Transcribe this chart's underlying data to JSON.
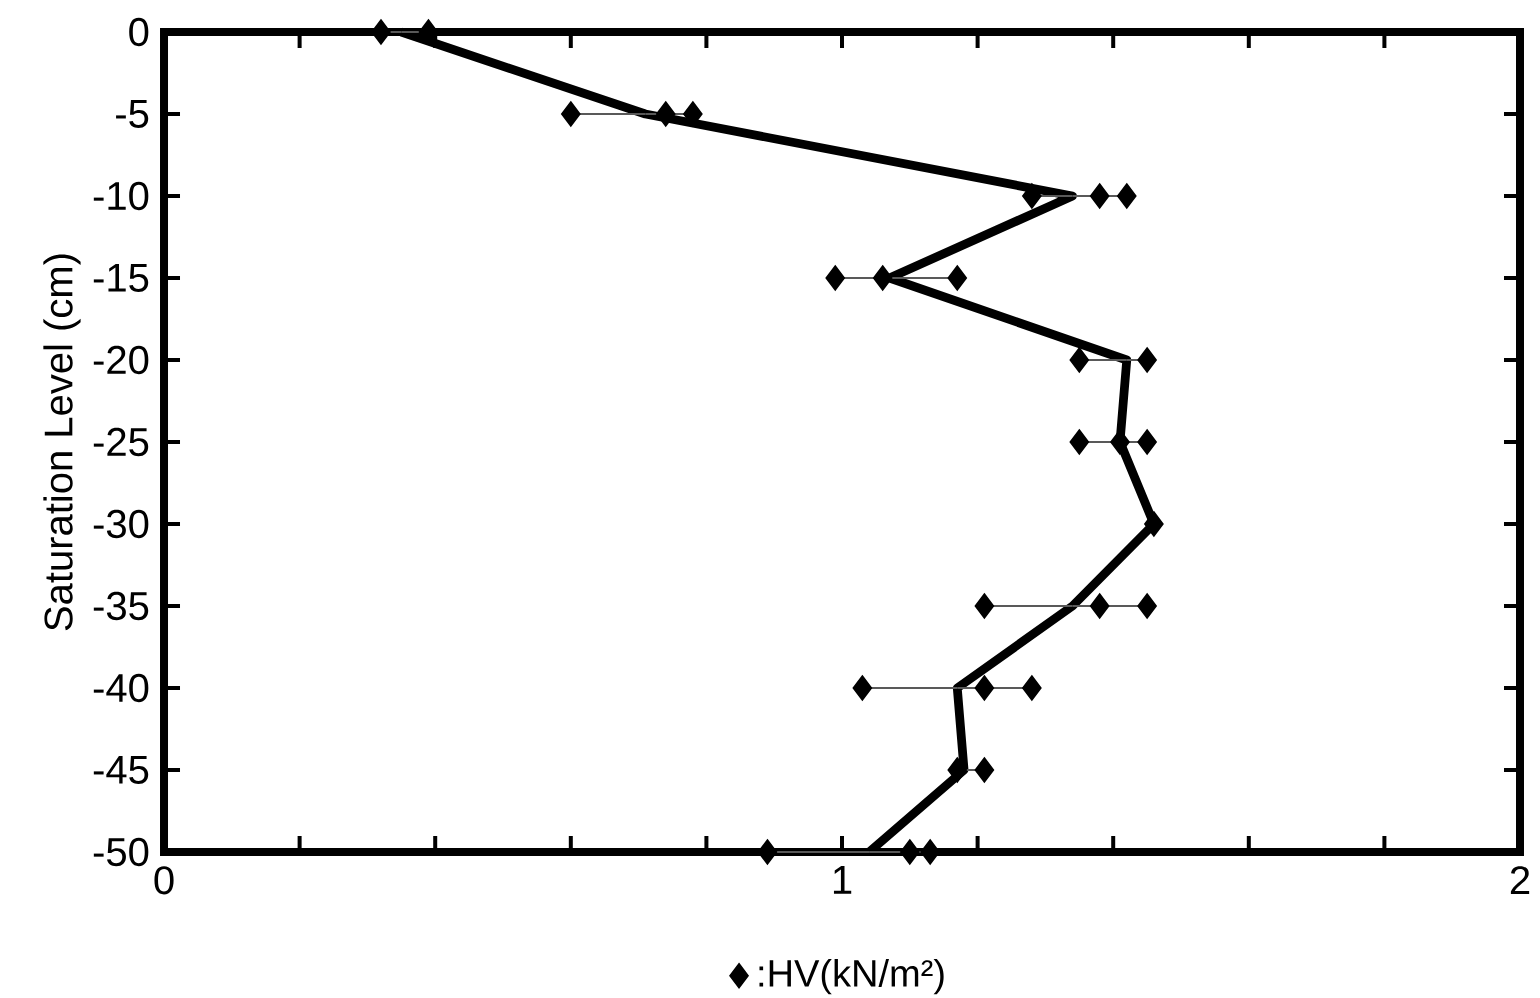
{
  "chart_data": {
    "type": "line",
    "ylabel": "Saturation Level (cm)",
    "xlim": [
      0,
      2
    ],
    "xticks": [
      0,
      {
        "value": 0.2,
        "label": null
      },
      {
        "value": 0.4,
        "label": null
      },
      {
        "value": 0.6,
        "label": null
      },
      {
        "value": 0.8,
        "label": null
      },
      1,
      {
        "value": 1.2,
        "label": null
      },
      {
        "value": 1.4,
        "label": null
      },
      {
        "value": 1.6,
        "label": null
      },
      {
        "value": 1.8,
        "label": null
      },
      2
    ],
    "ylim": [
      -50,
      0
    ],
    "yticks": [
      0,
      -5,
      -10,
      -15,
      -20,
      -25,
      -30,
      -35,
      -40,
      -45,
      -50
    ],
    "legend": "bottom",
    "grid": false,
    "series": [
      {
        "name": ":HV(kN/m²)",
        "type": "scatter",
        "marker": "diamond",
        "color": "#000000",
        "x": [
          0.32,
          0.39,
          0.6,
          0.74,
          0.78,
          1.28,
          1.38,
          1.42,
          0.99,
          1.06,
          1.17,
          1.35,
          1.45,
          1.35,
          1.41,
          1.45,
          1.46,
          1.21,
          1.38,
          1.45,
          1.03,
          1.21,
          1.28,
          1.17,
          1.21,
          0.89,
          1.1,
          1.13
        ],
        "values": [
          0,
          0,
          -5,
          -5,
          -5,
          -10,
          -10,
          -10,
          -15,
          -15,
          -15,
          -20,
          -20,
          -25,
          -25,
          -25,
          -30,
          -35,
          -35,
          -35,
          -40,
          -40,
          -40,
          -45,
          -45,
          -50,
          -50,
          -50
        ]
      },
      {
        "marker": "none",
        "line_style": "solid",
        "color": "#000000",
        "x": [
          0.35,
          0.71,
          1.34,
          1.07,
          1.42,
          1.41,
          1.46,
          1.34,
          1.17,
          1.18,
          1.04
        ],
        "values": [
          0,
          -5,
          -10,
          -15,
          -20,
          -25,
          -30,
          -35,
          -40,
          -45,
          -50
        ],
        "xerrors": [
          [
            0.32,
            0.39
          ],
          [
            0.6,
            0.78
          ],
          [
            1.28,
            1.42
          ],
          [
            0.99,
            1.17
          ],
          [
            1.35,
            1.45
          ],
          [
            1.35,
            1.45
          ],
          null,
          [
            1.21,
            1.45
          ],
          [
            1.03,
            1.28
          ],
          [
            1.17,
            1.21
          ],
          [
            0.89,
            1.13
          ]
        ]
      }
    ]
  }
}
